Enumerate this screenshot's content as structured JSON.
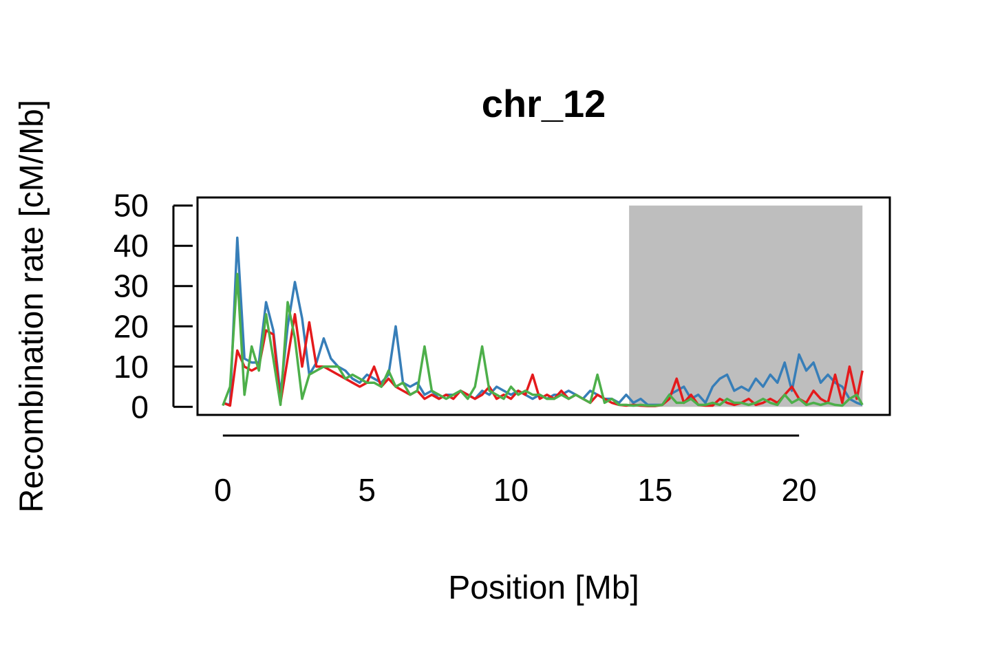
{
  "chart_data": {
    "type": "line",
    "title": "chr_12",
    "x_label": "Position [Mb]",
    "y_label": "Recombination rate [cM/Mb]",
    "xlim": [
      -0.88,
      23.15
    ],
    "ylim": [
      -2,
      52
    ],
    "xticks": [
      0,
      5,
      10,
      15,
      20
    ],
    "yticks": [
      0,
      10,
      20,
      30,
      40,
      50
    ],
    "shaded_region": {
      "x": [
        14.1,
        22.2
      ],
      "y": [
        0,
        50
      ],
      "color": "#bebebe"
    },
    "x": [
      0,
      0.25,
      0.5,
      0.75,
      1,
      1.25,
      1.5,
      1.75,
      2,
      2.25,
      2.5,
      2.75,
      3,
      3.25,
      3.5,
      3.75,
      4,
      4.25,
      4.5,
      4.75,
      5,
      5.25,
      5.5,
      5.75,
      6,
      6.25,
      6.5,
      6.75,
      7,
      7.25,
      7.5,
      7.75,
      8,
      8.25,
      8.5,
      8.75,
      9,
      9.25,
      9.5,
      9.75,
      10,
      10.25,
      10.5,
      10.75,
      11,
      11.25,
      11.5,
      11.75,
      12,
      12.25,
      12.5,
      12.75,
      13,
      13.25,
      13.5,
      13.75,
      14,
      14.25,
      14.5,
      14.75,
      15,
      15.25,
      15.5,
      15.75,
      16,
      16.25,
      16.5,
      16.75,
      17,
      17.25,
      17.5,
      17.75,
      18,
      18.25,
      18.5,
      18.75,
      19,
      19.25,
      19.5,
      19.75,
      20,
      20.25,
      20.5,
      20.75,
      21,
      21.25,
      21.5,
      21.75,
      22,
      22.2
    ],
    "series": [
      {
        "color": "#377eb8",
        "values": [
          1,
          0.5,
          42,
          12,
          11,
          11,
          26,
          19,
          3,
          20,
          31,
          22,
          8,
          11,
          17,
          12,
          10,
          9,
          7,
          6,
          8,
          7,
          6,
          8,
          20,
          6,
          5,
          6,
          3,
          4,
          2,
          3,
          3,
          4,
          3,
          2,
          4,
          3,
          5,
          4,
          3,
          4,
          3,
          2,
          3,
          2,
          3,
          3,
          4,
          3,
          2,
          4,
          3,
          2,
          2,
          1,
          3,
          1,
          2,
          0.5,
          0.5,
          0.5,
          3,
          4,
          5,
          2,
          3,
          1,
          5,
          7,
          8,
          4,
          5,
          4,
          7,
          5,
          8,
          6,
          11,
          4,
          13,
          9,
          11,
          6,
          8,
          6,
          5,
          2,
          1,
          0.5
        ]
      },
      {
        "color": "#e41a1c",
        "values": [
          1,
          0.3,
          14,
          10,
          9,
          10,
          19,
          18,
          1,
          12,
          23,
          10,
          21,
          10,
          10,
          9,
          8,
          7,
          6,
          5,
          6,
          10,
          5,
          7,
          5,
          4,
          3,
          4,
          2,
          3,
          2,
          3,
          2,
          4,
          3,
          2,
          3,
          5,
          2,
          3,
          2,
          4,
          3,
          8,
          2,
          3,
          2,
          4,
          2,
          3,
          2,
          1,
          3,
          2,
          1,
          0.5,
          0.3,
          0.5,
          0.3,
          0.2,
          0.2,
          0.5,
          2,
          7,
          1,
          3,
          0.5,
          0.3,
          0.3,
          2,
          1,
          0.5,
          1,
          2,
          0.5,
          1,
          2,
          1,
          3,
          5,
          2,
          1,
          4,
          2,
          1,
          8,
          1,
          10,
          2,
          9
        ]
      },
      {
        "color": "#4daf4a",
        "values": [
          0.3,
          5,
          33,
          3,
          15,
          9,
          23,
          12,
          0.5,
          26,
          17,
          2,
          8,
          9,
          10,
          10,
          10,
          7,
          8,
          7,
          6,
          6,
          5,
          9,
          5,
          6,
          3,
          4,
          15,
          4,
          3,
          2,
          3,
          4,
          2,
          5,
          15,
          4,
          3,
          2,
          5,
          3,
          4,
          3,
          3,
          2,
          2,
          3,
          2,
          3,
          2,
          1,
          8,
          1,
          2,
          0.5,
          0.5,
          0.3,
          0.5,
          0.3,
          0.3,
          0.5,
          3,
          1,
          1,
          2,
          0.5,
          0.5,
          1,
          0.5,
          2,
          1,
          1,
          0.5,
          1,
          2,
          1,
          0.5,
          3,
          1,
          2,
          0.5,
          1,
          0.5,
          1,
          0.5,
          0.3,
          2,
          3,
          0.5
        ]
      }
    ]
  }
}
